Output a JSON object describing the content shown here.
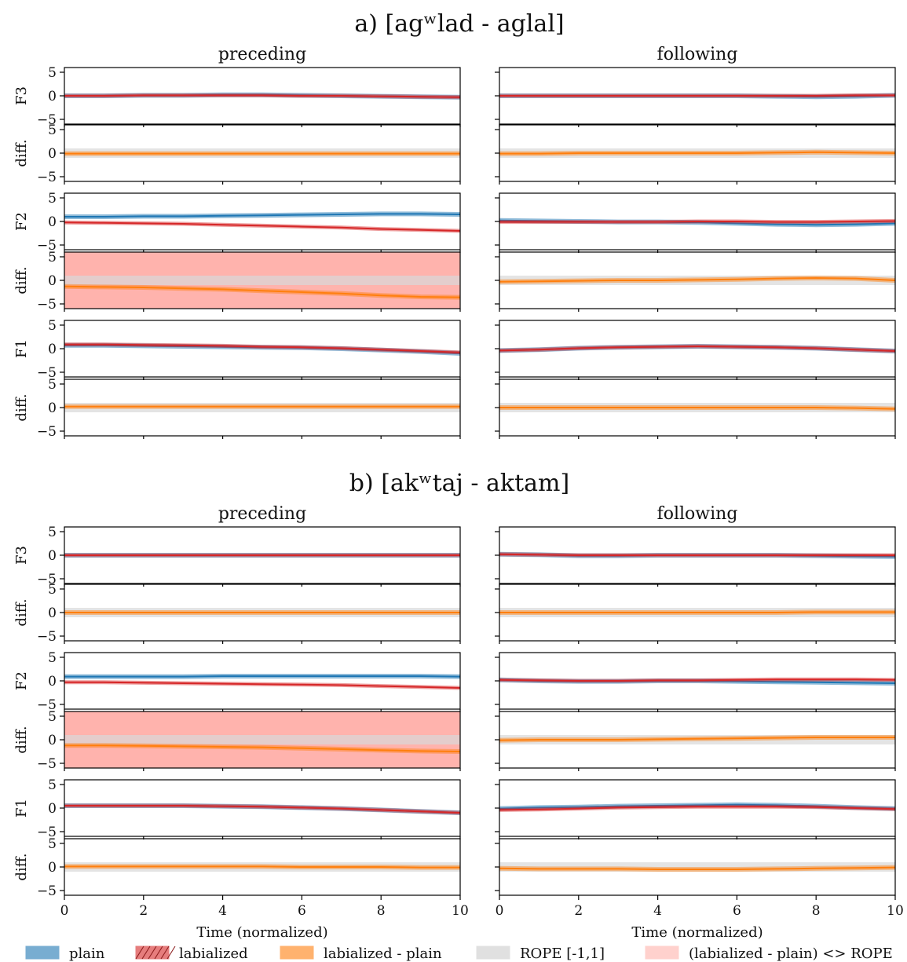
{
  "colors": {
    "plain": "#1f77b4",
    "labialized": "#d62728",
    "diff": "#ff7f0e",
    "rope": "#d9d9d9",
    "rope_outside": "#ffb3ad"
  },
  "legend": [
    {
      "key": "plain",
      "label": "plain",
      "color": "#1f77b4"
    },
    {
      "key": "labialized",
      "label": "labialized",
      "color": "#d62728"
    },
    {
      "key": "diff",
      "label": "labialized - plain",
      "color": "#ff7f0e"
    },
    {
      "key": "rope",
      "label": "ROPE [-1,1]",
      "color": "#d9d9d9"
    },
    {
      "key": "rope_outside",
      "label": "(labialized - plain) <> ROPE",
      "color": "#ffb3ad"
    }
  ],
  "columns": [
    "preceding",
    "following"
  ],
  "x_axis": {
    "label": "Time (normalized)",
    "ticks": [
      0,
      2,
      4,
      6,
      8,
      10
    ],
    "range": [
      0,
      10
    ]
  },
  "y_axis": {
    "ticks": [
      -5,
      0,
      5
    ],
    "range": [
      -6,
      6
    ]
  },
  "row_labels": [
    "F3",
    "diff.",
    "F2",
    "diff.",
    "F1",
    "diff."
  ],
  "chart_data": {
    "type": "line",
    "x": [
      0,
      1,
      2,
      3,
      4,
      5,
      6,
      7,
      8,
      9,
      10
    ],
    "panels": [
      {
        "title": "a) [agʷlad - aglal]",
        "preceding": {
          "F3": {
            "plain": [
              0,
              0,
              0.1,
              0.1,
              0.2,
              0.2,
              0.1,
              0,
              -0.1,
              -0.2,
              -0.3
            ],
            "labialized": [
              0,
              0,
              0.1,
              0.1,
              0.1,
              0.1,
              0,
              0,
              -0.1,
              -0.2,
              -0.3
            ]
          },
          "F3_diff": {
            "values": [
              -0.1,
              -0.1,
              -0.1,
              -0.1,
              -0.1,
              -0.1,
              -0.1,
              -0.1,
              -0.1,
              -0.1,
              -0.1
            ],
            "credible": false
          },
          "F2": {
            "plain": [
              1,
              1,
              1.1,
              1.1,
              1.2,
              1.3,
              1.4,
              1.5,
              1.6,
              1.6,
              1.5
            ],
            "labialized": [
              -0.2,
              -0.3,
              -0.4,
              -0.5,
              -0.7,
              -0.9,
              -1.1,
              -1.3,
              -1.6,
              -1.8,
              -2
            ]
          },
          "F2_diff": {
            "values": [
              -1.3,
              -1.4,
              -1.5,
              -1.7,
              -1.9,
              -2.2,
              -2.5,
              -2.8,
              -3.2,
              -3.5,
              -3.6
            ],
            "credible": true
          },
          "F1": {
            "plain": [
              0.7,
              0.7,
              0.6,
              0.5,
              0.4,
              0.3,
              0.2,
              0,
              -0.3,
              -0.6,
              -1
            ],
            "labialized": [
              0.9,
              0.9,
              0.8,
              0.7,
              0.6,
              0.4,
              0.3,
              0.1,
              -0.2,
              -0.5,
              -0.8
            ]
          },
          "F1_diff": {
            "values": [
              0.2,
              0.2,
              0.2,
              0.2,
              0.2,
              0.2,
              0.2,
              0.2,
              0.2,
              0.2,
              0.2
            ],
            "credible": false
          }
        },
        "following": {
          "F3": {
            "plain": [
              0,
              0,
              0,
              0,
              0,
              0,
              0,
              -0.1,
              -0.2,
              -0.1,
              0.1
            ],
            "labialized": [
              0,
              0,
              0,
              0,
              0,
              0,
              0,
              0,
              0,
              0.1,
              0.1
            ]
          },
          "F3_diff": {
            "values": [
              -0.1,
              -0.1,
              0,
              0,
              0,
              0,
              0,
              0.1,
              0.2,
              0.1,
              0
            ],
            "credible": false
          },
          "F2": {
            "plain": [
              0.2,
              0.1,
              0,
              -0.1,
              -0.1,
              -0.2,
              -0.4,
              -0.6,
              -0.7,
              -0.6,
              -0.4
            ],
            "labialized": [
              -0.1,
              -0.1,
              -0.1,
              -0.1,
              -0.1,
              0,
              0,
              -0.1,
              -0.1,
              0,
              0.1
            ]
          },
          "F2_diff": {
            "values": [
              -0.3,
              -0.2,
              -0.1,
              0,
              0,
              0.1,
              0.2,
              0.4,
              0.5,
              0.4,
              0
            ],
            "credible": false
          },
          "F1": {
            "plain": [
              -0.4,
              -0.2,
              0.1,
              0.3,
              0.4,
              0.5,
              0.4,
              0.3,
              0.1,
              -0.2,
              -0.5
            ],
            "labialized": [
              -0.4,
              -0.2,
              0.1,
              0.3,
              0.4,
              0.5,
              0.4,
              0.3,
              0.1,
              -0.2,
              -0.5
            ]
          },
          "F1_diff": {
            "values": [
              0,
              0,
              0,
              0,
              0,
              0,
              0,
              0,
              0,
              -0.1,
              -0.3
            ],
            "credible": false
          }
        }
      },
      {
        "title": "b) [akʷtaj - aktam]",
        "preceding": {
          "F3": {
            "plain": [
              0,
              0,
              0,
              0,
              0,
              0,
              0,
              0,
              0,
              0,
              0
            ],
            "labialized": [
              0,
              0,
              0,
              0,
              0,
              0,
              0,
              0,
              0,
              0,
              0
            ]
          },
          "F3_diff": {
            "values": [
              0,
              0,
              0,
              0,
              0,
              0,
              0,
              0,
              0,
              0,
              0
            ],
            "credible": false
          },
          "F2": {
            "plain": [
              0.9,
              0.9,
              0.9,
              0.9,
              1,
              1,
              1,
              1,
              1,
              1,
              0.9
            ],
            "labialized": [
              -0.3,
              -0.3,
              -0.4,
              -0.5,
              -0.6,
              -0.7,
              -0.8,
              -0.9,
              -1.1,
              -1.3,
              -1.5
            ]
          },
          "F2_diff": {
            "values": [
              -1.2,
              -1.2,
              -1.3,
              -1.4,
              -1.5,
              -1.6,
              -1.8,
              -2,
              -2.2,
              -2.4,
              -2.5
            ],
            "credible": true
          },
          "F1": {
            "plain": [
              0.5,
              0.5,
              0.5,
              0.5,
              0.4,
              0.3,
              0.1,
              -0.1,
              -0.4,
              -0.7,
              -1
            ],
            "labialized": [
              0.5,
              0.5,
              0.5,
              0.5,
              0.4,
              0.3,
              0.1,
              -0.1,
              -0.4,
              -0.7,
              -1
            ]
          },
          "F1_diff": {
            "values": [
              0.1,
              0.1,
              0.1,
              0.1,
              0.1,
              0.1,
              0,
              0,
              0,
              -0.1,
              -0.1
            ],
            "credible": false
          }
        },
        "following": {
          "F3": {
            "plain": [
              0.2,
              0.1,
              -0.1,
              -0.1,
              0,
              0,
              0,
              0,
              -0.1,
              -0.2,
              -0.3
            ],
            "labialized": [
              0.2,
              0.1,
              0,
              0,
              0,
              0,
              0,
              0,
              0,
              0,
              0
            ]
          },
          "F3_diff": {
            "values": [
              0,
              0,
              0,
              0,
              0,
              0,
              0,
              0,
              0.1,
              0.1,
              0.1
            ],
            "credible": false
          },
          "F2": {
            "plain": [
              0.2,
              0,
              -0.1,
              -0.1,
              0,
              0,
              -0.1,
              -0.2,
              -0.3,
              -0.4,
              -0.5
            ],
            "labialized": [
              0.2,
              0.1,
              0,
              0,
              0.1,
              0.1,
              0.2,
              0.3,
              0.3,
              0.3,
              0.2
            ]
          },
          "F2_diff": {
            "values": [
              -0.1,
              0,
              0,
              0,
              0.1,
              0.2,
              0.3,
              0.4,
              0.5,
              0.5,
              0.5
            ],
            "credible": false
          },
          "F1": {
            "plain": [
              -0.1,
              0.1,
              0.2,
              0.4,
              0.5,
              0.6,
              0.7,
              0.6,
              0.4,
              0.1,
              -0.1
            ],
            "labialized": [
              -0.4,
              -0.3,
              -0.1,
              0.1,
              0.2,
              0.3,
              0.3,
              0.3,
              0.2,
              0,
              -0.2
            ]
          },
          "F1_diff": {
            "values": [
              -0.3,
              -0.4,
              -0.4,
              -0.4,
              -0.5,
              -0.5,
              -0.5,
              -0.4,
              -0.3,
              -0.2,
              -0.1
            ],
            "credible": false
          }
        }
      }
    ]
  }
}
